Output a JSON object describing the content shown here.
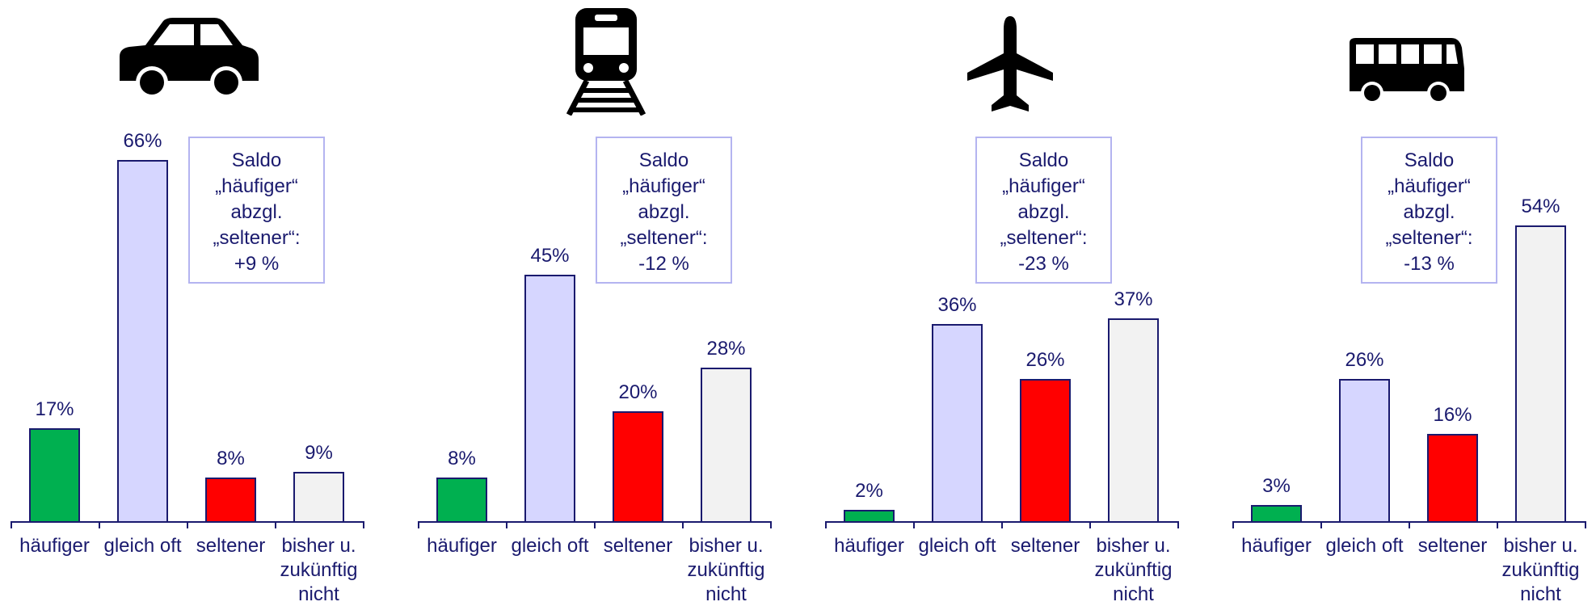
{
  "chart_data": [
    {
      "type": "bar",
      "categories": [
        "häufiger",
        "gleich oft",
        "seltener",
        "bisher u. zukünftig nicht"
      ],
      "values": [
        17,
        66,
        8,
        9
      ],
      "value_labels": [
        "17%",
        "66%",
        "8%",
        "9%"
      ],
      "colors": [
        "#00b050",
        "#d6d6ff",
        "#ff0000",
        "#f2f2f2"
      ],
      "annotation": [
        "Saldo",
        "„häufiger“",
        "abzgl.",
        "„seltener“:",
        "+9 %"
      ]
    },
    {
      "type": "bar",
      "categories": [
        "häufiger",
        "gleich oft",
        "seltener",
        "bisher u. zukünftig nicht"
      ],
      "values": [
        8,
        45,
        20,
        28
      ],
      "value_labels": [
        "8%",
        "45%",
        "20%",
        "28%"
      ],
      "colors": [
        "#00b050",
        "#d6d6ff",
        "#ff0000",
        "#f2f2f2"
      ],
      "annotation": [
        "Saldo",
        "„häufiger“",
        "abzgl.",
        "„seltener“:",
        "-12 %"
      ]
    },
    {
      "type": "bar",
      "categories": [
        "häufiger",
        "gleich oft",
        "seltener",
        "bisher u. zukünftig nicht"
      ],
      "values": [
        2,
        36,
        26,
        37
      ],
      "value_labels": [
        "2%",
        "36%",
        "26%",
        "37%"
      ],
      "colors": [
        "#00b050",
        "#d6d6ff",
        "#ff0000",
        "#f2f2f2"
      ],
      "annotation": [
        "Saldo",
        "„häufiger“",
        "abzgl.",
        "„seltener“:",
        "-23 %"
      ]
    },
    {
      "type": "bar",
      "categories": [
        "häufiger",
        "gleich oft",
        "seltener",
        "bisher u. zukünftig nicht"
      ],
      "values": [
        3,
        26,
        16,
        54
      ],
      "value_labels": [
        "3%",
        "26%",
        "16%",
        "54%"
      ],
      "colors": [
        "#00b050",
        "#d6d6ff",
        "#ff0000",
        "#f2f2f2"
      ],
      "annotation": [
        "Saldo",
        "„häufiger“",
        "abzgl.",
        "„seltener“:",
        "-13 %"
      ]
    }
  ]
}
